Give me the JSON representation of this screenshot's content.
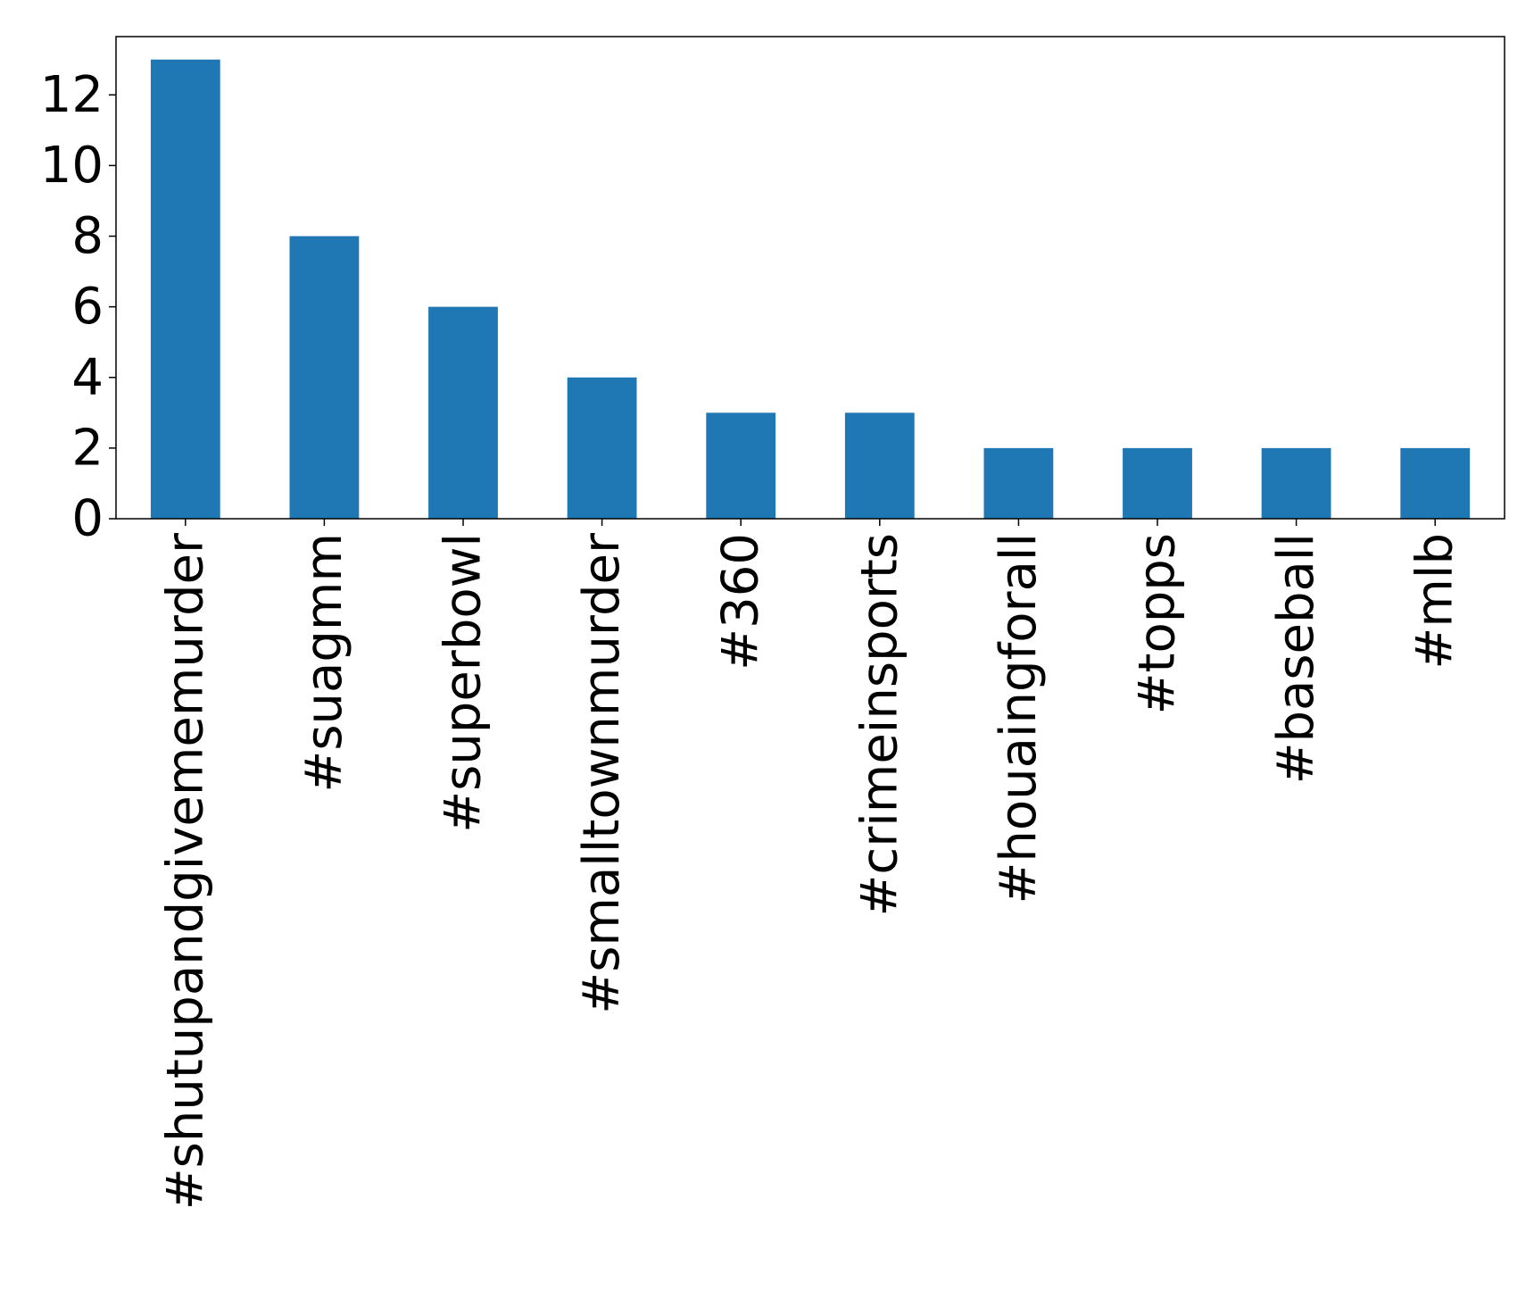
{
  "chart_data": {
    "type": "bar",
    "categories": [
      "#shutupandgivememurder",
      "#suagmm",
      "#superbowl",
      "#smalltownmurder",
      "#360",
      "#crimeinsports",
      "#houaingforall",
      "#topps",
      "#baseball",
      "#mlb"
    ],
    "values": [
      13,
      8,
      6,
      4,
      3,
      3,
      2,
      2,
      2,
      2
    ],
    "title": "",
    "xlabel": "",
    "ylabel": "",
    "ylim": [
      0,
      13.65
    ],
    "yticks": [
      0,
      2,
      4,
      6,
      8,
      10,
      12
    ],
    "grid": false,
    "x_tick_rotation": "vertical",
    "bar_color": "#1f77b4"
  }
}
